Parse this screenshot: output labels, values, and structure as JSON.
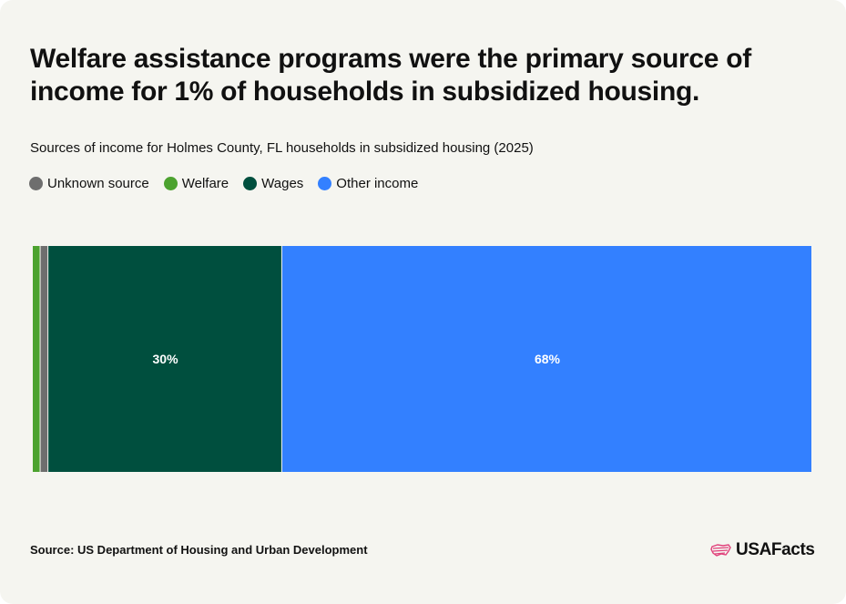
{
  "headline": "Welfare assistance programs were the primary source of income for 1% of households in subsidized housing.",
  "chart_data": {
    "type": "bar",
    "orientation": "horizontal-stacked",
    "subtitle": "Sources of income for Holmes County, FL households in subsidized housing (2025)",
    "legend_position": "top-left",
    "grid": false,
    "series": [
      {
        "name": "Welfare",
        "value": 1,
        "color": "#4ca22f",
        "label": ""
      },
      {
        "name": "Unknown source",
        "value": 1,
        "color": "#6e6e6e",
        "label": ""
      },
      {
        "name": "Wages",
        "value": 30,
        "color": "#004f3e",
        "label": "30%"
      },
      {
        "name": "Other income",
        "value": 68,
        "color": "#3380ff",
        "label": "68%"
      }
    ],
    "legend": [
      {
        "name": "Unknown source",
        "color": "#6e6e6e"
      },
      {
        "name": "Welfare",
        "color": "#4ca22f"
      },
      {
        "name": "Wages",
        "color": "#004f3e"
      },
      {
        "name": "Other income",
        "color": "#3380ff"
      }
    ]
  },
  "footer": {
    "source": "Source: US Department of Housing and Urban Development",
    "logo_text": "USAFacts",
    "logo_icon": "us-flag-map-icon",
    "logo_color": "#e0407a"
  }
}
